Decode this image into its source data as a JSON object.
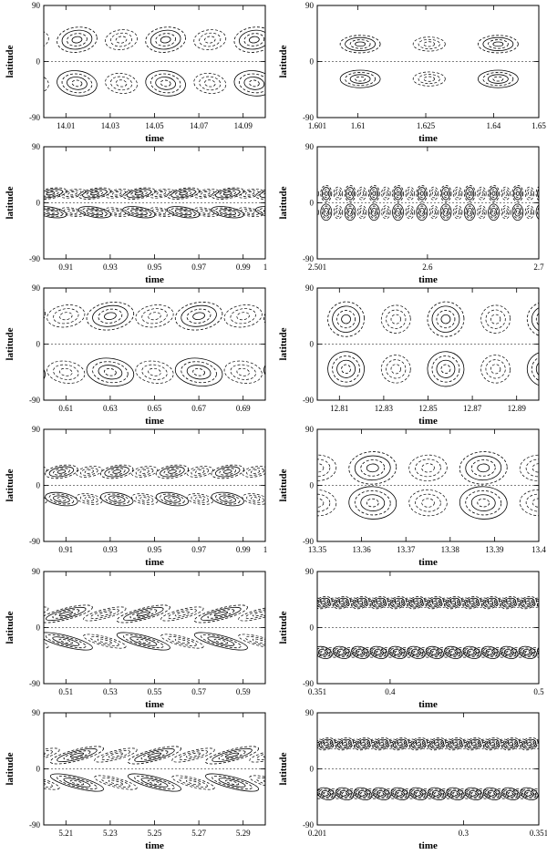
{
  "figure": {
    "xlabel": "time",
    "ylabel": "latitude"
  },
  "chart_data": [
    {
      "type": "heatmap",
      "panel": "row1-left",
      "xlabel": "time",
      "ylabel": "latitude",
      "ylim": [
        -90,
        90
      ],
      "yticks": [
        "90",
        "0",
        "-90"
      ],
      "xlim": [
        14.0,
        14.1
      ],
      "xticks": [
        {
          "v": 14.01,
          "t": "14.01"
        },
        {
          "v": 14.03,
          "t": "14.03"
        },
        {
          "v": 14.05,
          "t": "14.05"
        },
        {
          "v": 14.07,
          "t": "14.07"
        },
        {
          "v": 14.09,
          "t": "14.09"
        }
      ],
      "pattern": {
        "style": "tilted",
        "lat": 35,
        "width": 22,
        "height": 20,
        "period": 0.04,
        "phase": 0.015,
        "tilt": 0.6
      }
    },
    {
      "type": "heatmap",
      "panel": "row1-right",
      "xlabel": "time",
      "ylabel": "latitude",
      "ylim": [
        -90,
        90
      ],
      "yticks": [
        "90",
        "0",
        "-90"
      ],
      "xlim": [
        1.601,
        1.65
      ],
      "xticks": [
        {
          "v": 1.601,
          "t": "1.601"
        },
        {
          "v": 1.61,
          "t": "1.61"
        },
        {
          "v": 1.625,
          "t": "1.625"
        },
        {
          "v": 1.64,
          "t": "1.64"
        },
        {
          "v": 1.65,
          "t": "1.65"
        }
      ],
      "pattern": {
        "style": "steady",
        "lat": 28,
        "width": 22,
        "height": 14,
        "period": 0.0305,
        "phase": 0.0095,
        "tilt": 0
      }
    },
    {
      "type": "heatmap",
      "panel": "row2-left",
      "xlabel": "time",
      "ylabel": "latitude",
      "ylim": [
        -90,
        90
      ],
      "yticks": [
        "90",
        "0",
        "-90"
      ],
      "xlim": [
        0.9,
        1.0
      ],
      "xticks": [
        {
          "v": 0.91,
          "t": "0.91"
        },
        {
          "v": 0.93,
          "t": "0.93"
        },
        {
          "v": 0.95,
          "t": "0.95"
        },
        {
          "v": 0.97,
          "t": "0.97"
        },
        {
          "v": 0.99,
          "t": "0.99"
        },
        {
          "v": 1.0,
          "t": "1"
        }
      ],
      "pattern": {
        "style": "banded",
        "lat": 15,
        "width": 18,
        "height": 8,
        "period": 0.02,
        "phase": 0.003,
        "tilt": 0.8
      }
    },
    {
      "type": "heatmap",
      "panel": "row2-right",
      "xlabel": "time",
      "ylabel": "latitude",
      "ylim": [
        -90,
        90
      ],
      "yticks": [
        "90",
        "0",
        "-90"
      ],
      "xlim": [
        2.501,
        2.7
      ],
      "xticks": [
        {
          "v": 2.501,
          "t": "2.501"
        },
        {
          "v": 2.6,
          "t": "2.6"
        },
        {
          "v": 2.7,
          "t": "2.7"
        }
      ],
      "pattern": {
        "style": "cells",
        "lat": 15,
        "width": 6,
        "height": 13,
        "period": 0.0215,
        "phase": 0.008,
        "tilt": 0
      }
    },
    {
      "type": "heatmap",
      "panel": "row3-left",
      "xlabel": "time",
      "ylabel": "latitude",
      "ylim": [
        -90,
        90
      ],
      "yticks": [
        "90",
        "0",
        "-90"
      ],
      "xlim": [
        0.6,
        0.7
      ],
      "xticks": [
        {
          "v": 0.61,
          "t": "0.61"
        },
        {
          "v": 0.63,
          "t": "0.63"
        },
        {
          "v": 0.65,
          "t": "0.65"
        },
        {
          "v": 0.67,
          "t": "0.67"
        },
        {
          "v": 0.69,
          "t": "0.69"
        }
      ],
      "pattern": {
        "style": "tilted",
        "lat": 45,
        "width": 26,
        "height": 22,
        "period": 0.04,
        "phase": 0.03,
        "tilt": 0.7
      }
    },
    {
      "type": "heatmap",
      "panel": "row3-right",
      "xlabel": "time",
      "ylabel": "latitude",
      "ylim": [
        -90,
        90
      ],
      "yticks": [
        "90",
        "0",
        "-90"
      ],
      "xlim": [
        12.8,
        12.9
      ],
      "xticks": [
        {
          "v": 12.81,
          "t": "12.81"
        },
        {
          "v": 12.83,
          "t": "12.83"
        },
        {
          "v": 12.85,
          "t": "12.85"
        },
        {
          "v": 12.87,
          "t": "12.87"
        },
        {
          "v": 12.89,
          "t": "12.89"
        }
      ],
      "pattern": {
        "style": "tilted",
        "lat": 40,
        "width": 20,
        "height": 28,
        "period": 0.045,
        "phase": 0.013,
        "tilt": 0.4
      }
    },
    {
      "type": "heatmap",
      "panel": "row4-left",
      "xlabel": "time",
      "ylabel": "latitude",
      "ylim": [
        -90,
        90
      ],
      "yticks": [
        "90",
        "0",
        "-90"
      ],
      "xlim": [
        0.9,
        1.0
      ],
      "xticks": [
        {
          "v": 0.91,
          "t": "0.91"
        },
        {
          "v": 0.93,
          "t": "0.93"
        },
        {
          "v": 0.95,
          "t": "0.95"
        },
        {
          "v": 0.97,
          "t": "0.97"
        },
        {
          "v": 0.99,
          "t": "0.99"
        },
        {
          "v": 1.0,
          "t": "1"
        }
      ],
      "pattern": {
        "style": "tilted",
        "lat": 22,
        "width": 18,
        "height": 10,
        "period": 0.025,
        "phase": 0.008,
        "tilt": 0.8
      }
    },
    {
      "type": "heatmap",
      "panel": "row4-right",
      "xlabel": "time",
      "ylabel": "latitude",
      "ylim": [
        -90,
        90
      ],
      "yticks": [
        "90",
        "0",
        "-90"
      ],
      "xlim": [
        13.35,
        13.4
      ],
      "xticks": [
        {
          "v": 13.35,
          "t": "13.35"
        },
        {
          "v": 13.36,
          "t": "13.36"
        },
        {
          "v": 13.37,
          "t": "13.37"
        },
        {
          "v": 13.38,
          "t": "13.38"
        },
        {
          "v": 13.39,
          "t": "13.39"
        },
        {
          "v": 13.4,
          "t": "13.4"
        }
      ],
      "pattern": {
        "style": "steady",
        "lat": 28,
        "width": 26,
        "height": 26,
        "period": 0.025,
        "phase": 0.0125,
        "tilt": 0.2
      }
    },
    {
      "type": "heatmap",
      "panel": "row5-left",
      "xlabel": "time",
      "ylabel": "latitude",
      "ylim": [
        -90,
        90
      ],
      "yticks": [
        "90",
        "0",
        "-90"
      ],
      "xlim": [
        0.5,
        0.6
      ],
      "xticks": [
        {
          "v": 0.51,
          "t": "0.51"
        },
        {
          "v": 0.53,
          "t": "0.53"
        },
        {
          "v": 0.55,
          "t": "0.55"
        },
        {
          "v": 0.57,
          "t": "0.57"
        },
        {
          "v": 0.59,
          "t": "0.59"
        }
      ],
      "pattern": {
        "style": "banded",
        "lat": 22,
        "width": 30,
        "height": 9,
        "period": 0.035,
        "phase": 0.01,
        "tilt": 1.2
      }
    },
    {
      "type": "heatmap",
      "panel": "row5-right",
      "xlabel": "time",
      "ylabel": "latitude",
      "ylim": [
        -90,
        90
      ],
      "yticks": [
        "90",
        "0",
        "-90"
      ],
      "xlim": [
        0.351,
        0.5
      ],
      "xticks": [
        {
          "v": 0.351,
          "t": "0.351"
        },
        {
          "v": 0.4,
          "t": "0.4"
        },
        {
          "v": 0.5,
          "t": "0.5"
        }
      ],
      "pattern": {
        "style": "banded",
        "lat": 40,
        "width": 10,
        "height": 9,
        "period": 0.0125,
        "phase": 0.004,
        "tilt": 1.5
      }
    },
    {
      "type": "heatmap",
      "panel": "row6-left",
      "xlabel": "time",
      "ylabel": "latitude",
      "ylim": [
        -90,
        90
      ],
      "yticks": [
        "90",
        "0",
        "-90"
      ],
      "xlim": [
        5.2,
        5.3
      ],
      "xticks": [
        {
          "v": 5.21,
          "t": "5.21"
        },
        {
          "v": 5.23,
          "t": "5.23"
        },
        {
          "v": 5.25,
          "t": "5.25"
        },
        {
          "v": 5.27,
          "t": "5.27"
        },
        {
          "v": 5.29,
          "t": "5.29"
        }
      ],
      "pattern": {
        "style": "banded",
        "lat": 22,
        "width": 30,
        "height": 9,
        "period": 0.035,
        "phase": 0.015,
        "tilt": 1.2
      }
    },
    {
      "type": "heatmap",
      "panel": "row6-right",
      "xlabel": "time",
      "ylabel": "latitude",
      "ylim": [
        -90,
        90
      ],
      "yticks": [
        "90",
        "0",
        "-90"
      ],
      "xlim": [
        0.201,
        0.351
      ],
      "xticks": [
        {
          "v": 0.201,
          "t": "0.201"
        },
        {
          "v": 0.3,
          "t": "0.3"
        },
        {
          "v": 0.351,
          "t": "0.351"
        }
      ],
      "pattern": {
        "style": "banded",
        "lat": 40,
        "width": 10,
        "height": 9,
        "period": 0.0125,
        "phase": 0.006,
        "tilt": 1.5
      }
    }
  ]
}
